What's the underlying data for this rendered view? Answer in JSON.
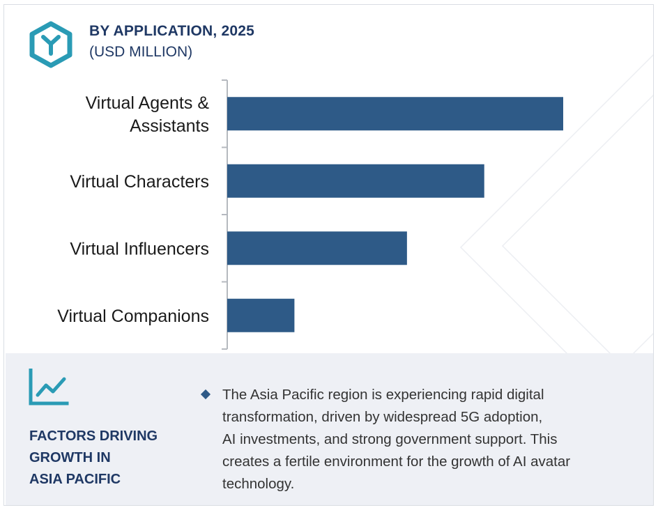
{
  "header": {
    "title": "BY APPLICATION, 2025",
    "subtitle": "(USD MILLION)",
    "icon": "hexagon-y-icon"
  },
  "chart_data": {
    "type": "bar",
    "orientation": "horizontal",
    "categories": [
      [
        "Virtual Agents &",
        "Assistants"
      ],
      [
        "Virtual Characters"
      ],
      [
        "Virtual Influencers"
      ],
      [
        "Virtual Companions"
      ]
    ],
    "values": [
      100,
      76.5,
      53.5,
      20
    ],
    "value_note": "no axis or data labels shown; values are relative bar lengths",
    "bar_color": "#2e5a87",
    "grid": false,
    "legend": "none"
  },
  "factors": {
    "icon": "trend-chart-icon",
    "title_lines": [
      "FACTORS DRIVING",
      "GROWTH IN",
      "ASIA PACIFIC"
    ],
    "bullet_icon": "diamond-bullet-icon",
    "text_lines": [
      "The Asia Pacific region is experiencing rapid digital",
      "transformation, driven by widespread 5G adoption,",
      "AI investments, and strong government support. This",
      "creates a fertile environment for the growth of AI avatar",
      "technology."
    ]
  },
  "colors": {
    "accent": "#1f3864",
    "icon_teal": "#2a9bb5",
    "bar": "#2e5a87",
    "panel": "#eef0f5"
  }
}
